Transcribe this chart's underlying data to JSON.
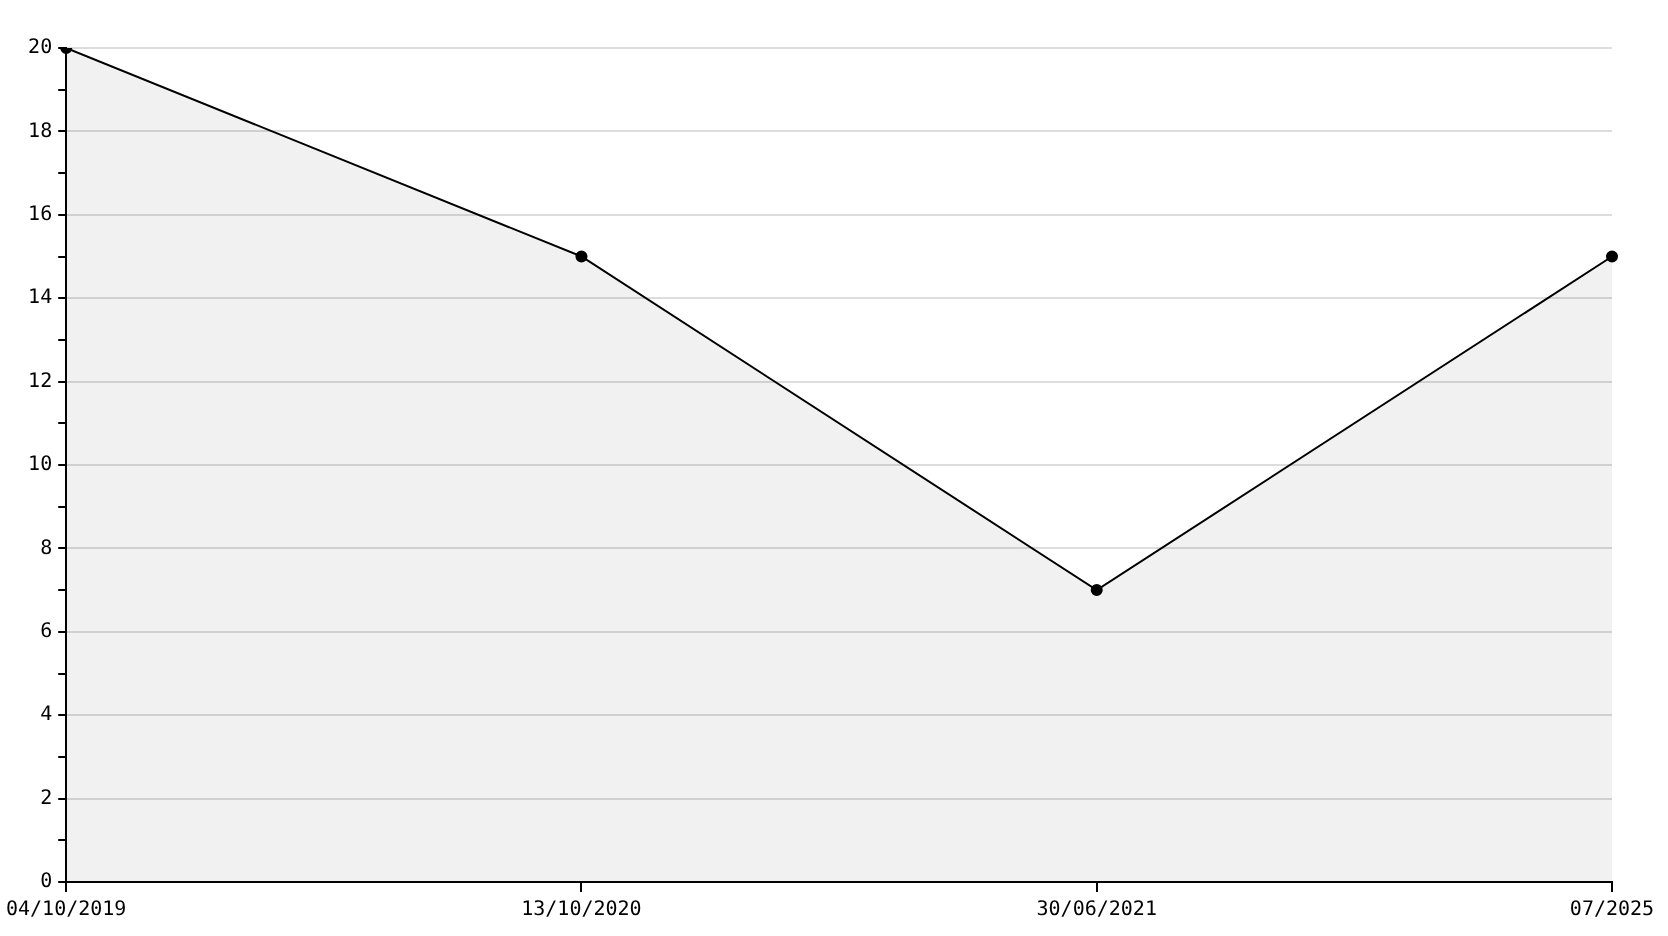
{
  "chart_data": {
    "type": "area",
    "categories": [
      "04/10/2019",
      "13/10/2020",
      "30/06/2021",
      "07/2025"
    ],
    "series": [
      {
        "color": "#000000",
        "values": [
          20,
          15,
          7,
          15
        ]
      }
    ],
    "ylim": [
      0,
      20
    ],
    "yticks": [
      0,
      {
        "value": 1,
        "label": null
      },
      2,
      {
        "value": 3,
        "label": null
      },
      4,
      {
        "value": 5,
        "label": null
      },
      6,
      {
        "value": 7,
        "label": null
      },
      8,
      {
        "value": 9,
        "label": null
      },
      10,
      {
        "value": 11,
        "label": null
      },
      12,
      {
        "value": 13,
        "label": null
      },
      14,
      {
        "value": 15,
        "label": null
      },
      16,
      {
        "value": 17,
        "label": null
      },
      18,
      {
        "value": 19,
        "label": null
      },
      20
    ],
    "grid": "y",
    "marker": "circle",
    "legend": false
  }
}
